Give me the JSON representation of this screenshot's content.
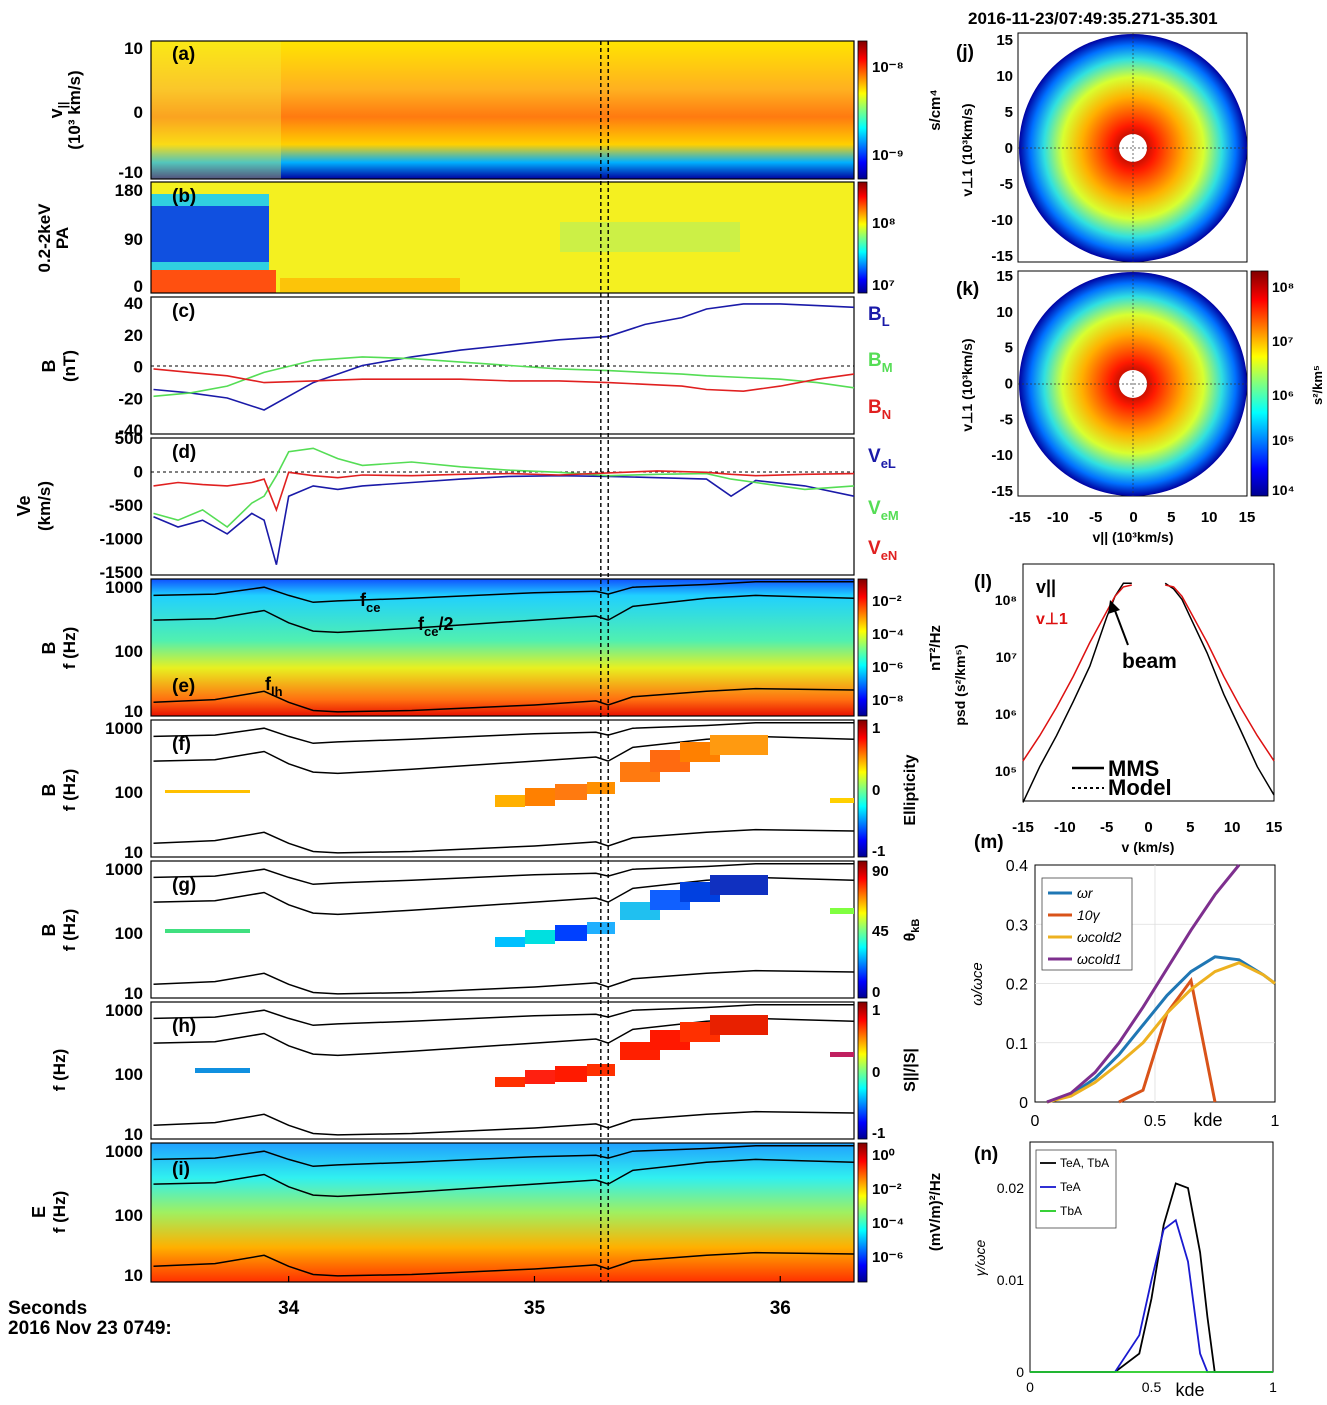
{
  "header": {
    "time_range": "2016-11-23/07:49:35.271-35.301"
  },
  "time_axis": {
    "range": [
      33.44,
      36.3
    ],
    "ticks": [
      "34",
      "35",
      "36"
    ],
    "tick_values": [
      34,
      35,
      36
    ],
    "label_line1": "Seconds",
    "label_line2": "2016 Nov 23 0749:",
    "marker_lines": [
      35.27,
      35.3
    ]
  },
  "colors": {
    "BL": "#1a1aa8",
    "BM": "#55dd55",
    "BN": "#e02020",
    "wr": "#1f77b4",
    "g10": "#d95319",
    "cold2": "#edb120",
    "cold1": "#7e2f8e",
    "TeATbA": "#000000",
    "TeA": "#1a1ad0",
    "TbA": "#22cc22"
  },
  "panels": {
    "a": {
      "tag": "(a)",
      "ylabel1": "v",
      "ylabel1_sub": "||",
      "ylabel2": "(10³ km/s)",
      "yticks": [
        "10",
        "0",
        "-10"
      ],
      "cticks": [
        "10⁻⁸",
        "10⁻⁹"
      ],
      "cunit": "s/cm⁴"
    },
    "b": {
      "tag": "(b)",
      "ylabel1": "0.2-2keV",
      "ylabel2": "PA",
      "yticks": [
        "180",
        "90",
        "0"
      ],
      "cticks": [
        "10⁸",
        "10⁷"
      ]
    },
    "c": {
      "tag": "(c)",
      "ylabel1": "B",
      "ylabel2": "(nT)",
      "yticks": [
        "40",
        "20",
        "0",
        "-20",
        "-40"
      ],
      "legend": [
        {
          "base": "B",
          "sub": "L",
          "key": "BL"
        },
        {
          "base": "B",
          "sub": "M",
          "key": "BM"
        },
        {
          "base": "B",
          "sub": "N",
          "key": "BN"
        }
      ]
    },
    "d": {
      "tag": "(d)",
      "ylabel1": "Ve",
      "ylabel2": "(km/s)",
      "yticks": [
        "500",
        "0",
        "-500",
        "-1000",
        "-1500"
      ],
      "legend": [
        {
          "base": "V",
          "sub": "eL",
          "key": "BL"
        },
        {
          "base": "V",
          "sub": "eM",
          "key": "BM"
        },
        {
          "base": "V",
          "sub": "eN",
          "key": "BN"
        }
      ]
    },
    "e": {
      "tag": "(e)",
      "ylabel1": "B",
      "ylabel2": "f (Hz)",
      "yticks": [
        "1000",
        "100",
        "10"
      ],
      "cticks": [
        "10⁻²",
        "10⁻⁴",
        "10⁻⁶",
        "10⁻⁸"
      ],
      "cunit": "nT²/Hz",
      "ann_fce": "f",
      "ann_fce_sub": "ce",
      "ann_fce2": "f",
      "ann_fce2_sub": "ce",
      "ann_fce2_post": "/2",
      "ann_flh": "f",
      "ann_flh_sub": "lh"
    },
    "f": {
      "tag": "(f)",
      "ylabel1": "B",
      "ylabel2": "f (Hz)",
      "yticks": [
        "1000",
        "100",
        "10"
      ],
      "cticks": [
        "1",
        "0",
        "-1"
      ],
      "cunit": "Ellipticity"
    },
    "g": {
      "tag": "(g)",
      "ylabel1": "B",
      "ylabel2": "f (Hz)",
      "yticks": [
        "1000",
        "100",
        "10"
      ],
      "cticks": [
        "90",
        "45",
        "0"
      ],
      "cunit": "θ",
      "cunit_sub": "kB"
    },
    "h": {
      "tag": "(h)",
      "ylabel1": "f (Hz)",
      "ylabel2": "",
      "yticks": [
        "1000",
        "100",
        "10"
      ],
      "cticks": [
        "1",
        "0",
        "-1"
      ],
      "cunit": "S||/|S|"
    },
    "i": {
      "tag": "(i)",
      "ylabel1": "E",
      "ylabel2": "f (Hz)",
      "yticks": [
        "1000",
        "100",
        "10"
      ],
      "cticks": [
        "10⁰",
        "10⁻²",
        "10⁻⁴",
        "10⁻⁶"
      ],
      "cunit": "(mV/m)²/Hz"
    }
  },
  "right": {
    "j": {
      "tag": "(j)",
      "ylabel": "v⊥1 (10³km/s)",
      "yticks": [
        "15",
        "10",
        "5",
        "0",
        "-5",
        "-10",
        "-15"
      ]
    },
    "k": {
      "tag": "(k)",
      "ylabel": "v⊥1 (10³km/s)",
      "yticks": [
        "15",
        "10",
        "5",
        "0",
        "-5",
        "-10",
        "-15"
      ],
      "xticks": [
        "-15",
        "-10",
        "-5",
        "0",
        "5",
        "10",
        "15"
      ],
      "xlabel": "v|| (10³km/s)",
      "cticks": [
        "10⁸",
        "10⁷",
        "10⁶",
        "10⁵",
        "10⁴"
      ],
      "cunit": "s²/km⁵"
    },
    "l": {
      "tag": "(l)",
      "ylabel": "psd (s²/km⁵)",
      "yticks": [
        "10⁸",
        "10⁷",
        "10⁶",
        "10⁵"
      ],
      "xticks": [
        "-15",
        "-10",
        "-5",
        "0",
        "5",
        "10",
        "15"
      ],
      "xlabel": "v (km/s)",
      "leg_par": "v||",
      "leg_perp": "v⊥1",
      "beam": "beam",
      "mms": "MMS",
      "model": "Model"
    },
    "m": {
      "tag": "(m)",
      "ylabel": "ω/ωce",
      "yticks": [
        "0.4",
        "0.3",
        "0.2",
        "0.1",
        "0"
      ],
      "xticks": [
        "0",
        "0.5",
        "1"
      ],
      "xlabel": "kde",
      "legend": [
        {
          "label": "ωr",
          "key": "wr"
        },
        {
          "label": "10γ",
          "key": "g10"
        },
        {
          "label": "ωcold2",
          "key": "cold2"
        },
        {
          "label": "ωcold1",
          "key": "cold1"
        }
      ]
    },
    "n": {
      "tag": "(n)",
      "ylabel": "γ/ωce",
      "yticks": [
        "0.02",
        "0.01",
        "0"
      ],
      "xticks": [
        "0",
        "0.5",
        "1"
      ],
      "xlabel": "kde",
      "legend": [
        {
          "label": "TeA, TbA",
          "key": "TeATbA"
        },
        {
          "label": "TeA",
          "key": "TeA"
        },
        {
          "label": "TbA",
          "key": "TbA"
        }
      ]
    }
  },
  "chart_data": [
    {
      "type": "line",
      "title": "",
      "panel": "c",
      "xlabel": "Seconds",
      "ylabel": "B (nT)",
      "ylim": [
        -40,
        40
      ],
      "x": [
        33.45,
        33.6,
        33.75,
        33.9,
        34.1,
        34.3,
        34.5,
        34.7,
        34.9,
        35.1,
        35.3,
        35.45,
        35.6,
        35.7,
        35.85,
        36.0,
        36.15,
        36.3
      ],
      "series": [
        {
          "name": "BL",
          "values": [
            -14,
            -16,
            -19,
            -26,
            -10,
            0,
            5,
            9,
            12,
            15,
            17,
            24,
            28,
            33,
            36,
            36,
            35,
            34
          ]
        },
        {
          "name": "BM",
          "values": [
            -18,
            -16,
            -12,
            -4,
            3,
            5,
            4,
            2,
            0,
            -2,
            -3,
            -4,
            -5,
            -6,
            -7,
            -8,
            -10,
            -13
          ]
        },
        {
          "name": "BN",
          "values": [
            -2,
            -4,
            -6,
            -10,
            -9,
            -8,
            -8,
            -8,
            -9,
            -9,
            -10,
            -11,
            -12,
            -14,
            -15,
            -12,
            -8,
            -5
          ]
        }
      ]
    },
    {
      "type": "line",
      "title": "",
      "panel": "d",
      "xlabel": "Seconds",
      "ylabel": "Ve (km/s)",
      "ylim": [
        -1500,
        500
      ],
      "x": [
        33.45,
        33.55,
        33.65,
        33.75,
        33.85,
        33.9,
        33.95,
        34.0,
        34.1,
        34.2,
        34.3,
        34.5,
        34.7,
        34.9,
        35.1,
        35.3,
        35.5,
        35.7,
        35.8,
        35.9,
        36.1,
        36.3
      ],
      "series": [
        {
          "name": "VeL",
          "values": [
            -650,
            -800,
            -700,
            -900,
            -600,
            -700,
            -1350,
            -350,
            -200,
            -250,
            -200,
            -150,
            -100,
            -60,
            -50,
            -60,
            -80,
            -100,
            -350,
            -120,
            -200,
            -350
          ]
        },
        {
          "name": "VeM",
          "values": [
            -600,
            -700,
            -550,
            -800,
            -450,
            -350,
            -50,
            300,
            350,
            200,
            100,
            150,
            80,
            30,
            0,
            -50,
            -30,
            -20,
            -100,
            -150,
            -250,
            -200
          ]
        },
        {
          "name": "VeN",
          "values": [
            -200,
            -150,
            -180,
            -200,
            -150,
            -100,
            -550,
            0,
            -50,
            -80,
            -40,
            -50,
            -30,
            -20,
            -40,
            -10,
            20,
            0,
            -30,
            -50,
            -30,
            -20
          ]
        }
      ]
    },
    {
      "type": "line",
      "title": "",
      "panel": "l",
      "xlabel": "v (km/s)",
      "ylabel": "psd (s²/km⁵)",
      "ylim": [
        31622,
        316227766
      ],
      "log_y": true,
      "x": [
        -15,
        -13,
        -11,
        -9,
        -7,
        -5,
        -4,
        -3,
        -2,
        2,
        3,
        4,
        5,
        7,
        9,
        11,
        13,
        15
      ],
      "series": [
        {
          "name": "v||",
          "values": [
            30000,
            120000,
            400000,
            1500000,
            6000000,
            40000000,
            90000000,
            150000000,
            150000000,
            150000000,
            120000000,
            80000000,
            40000000,
            10000000,
            2000000,
            500000,
            120000,
            40000
          ]
        },
        {
          "name": "v⊥1",
          "values": [
            150000,
            400000,
            1200000,
            4000000,
            15000000,
            50000000,
            90000000,
            130000000,
            140000000,
            140000000,
            130000000,
            90000000,
            50000000,
            15000000,
            4000000,
            1200000,
            400000,
            150000
          ]
        }
      ]
    },
    {
      "type": "line",
      "title": "",
      "panel": "m",
      "xlabel": "kde",
      "ylabel": "ω/ωce",
      "ylim": [
        0,
        0.4
      ],
      "x": [
        0.05,
        0.15,
        0.25,
        0.35,
        0.45,
        0.55,
        0.65,
        0.75,
        0.85,
        0.95,
        1.0
      ],
      "series": [
        {
          "name": "ωr",
          "values": [
            0,
            0.012,
            0.04,
            0.08,
            0.13,
            0.18,
            0.22,
            0.245,
            0.24,
            0.215,
            0.2
          ]
        },
        {
          "name": "10γ",
          "values": [
            null,
            null,
            null,
            0,
            0.02,
            0.15,
            0.205,
            0,
            null,
            null,
            null
          ]
        },
        {
          "name": "ωcold2",
          "values": [
            0,
            0.01,
            0.033,
            0.065,
            0.1,
            0.15,
            0.19,
            0.22,
            0.235,
            0.215,
            0.2
          ]
        },
        {
          "name": "ωcold1",
          "values": [
            0,
            0.015,
            0.05,
            0.1,
            0.16,
            0.225,
            0.29,
            0.35,
            0.4,
            null,
            null
          ]
        }
      ]
    },
    {
      "type": "line",
      "title": "",
      "panel": "n",
      "xlabel": "kde",
      "ylabel": "γ/ωce",
      "ylim": [
        0,
        0.025
      ],
      "x": [
        0,
        0.35,
        0.45,
        0.5,
        0.55,
        0.6,
        0.65,
        0.7,
        0.73,
        0.76,
        1.0
      ],
      "series": [
        {
          "name": "TeA, TbA",
          "values": [
            0,
            0,
            0.002,
            0.008,
            0.016,
            0.0205,
            0.02,
            0.013,
            0.006,
            0,
            0
          ]
        },
        {
          "name": "TeA",
          "values": [
            0,
            0,
            0.004,
            0.01,
            0.0155,
            0.0165,
            0.012,
            0.002,
            0,
            0,
            0
          ]
        },
        {
          "name": "TbA",
          "values": [
            0,
            0,
            0,
            0,
            0,
            0,
            0,
            0,
            0,
            0,
            0
          ]
        }
      ]
    }
  ]
}
